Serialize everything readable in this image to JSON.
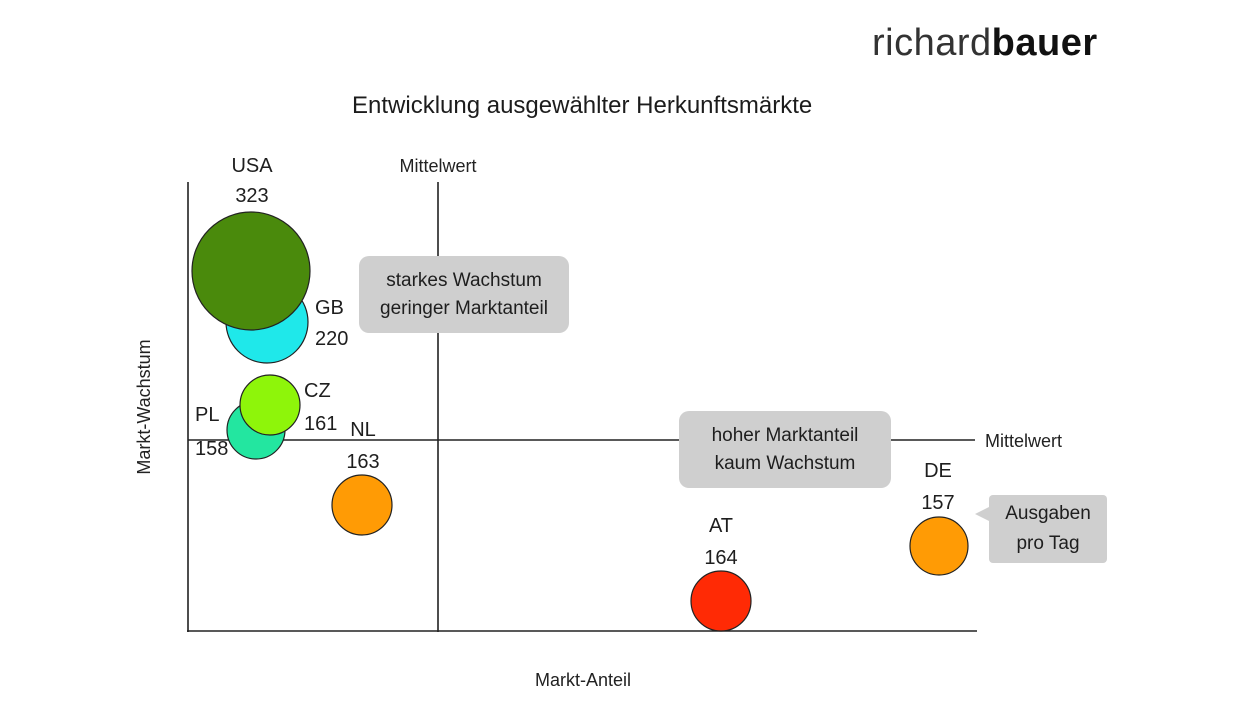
{
  "brand": {
    "light": "richard",
    "bold": "bauer"
  },
  "chart_data": {
    "type": "scatter",
    "title": "Entwicklung ausgewählter Herkunftsmärkte",
    "xlabel": "Markt-Anteil",
    "ylabel": "Markt-Wachstum",
    "mean_label_x": "Mittelwert",
    "mean_label_y": "Mittelwert",
    "bubble_size_meaning": "Ausgaben pro Tag",
    "points": [
      {
        "name": "USA",
        "value": 323,
        "color": "#4a8a0c"
      },
      {
        "name": "GB",
        "value": 220,
        "color": "#1fe8ea"
      },
      {
        "name": "CZ",
        "value": 161,
        "color": "#8ef50a"
      },
      {
        "name": "PL",
        "value": 158,
        "color": "#23e6a0"
      },
      {
        "name": "NL",
        "value": 163,
        "color": "#ff9b05"
      },
      {
        "name": "AT",
        "value": 164,
        "color": "#ff2a05"
      },
      {
        "name": "DE",
        "value": 157,
        "color": "#ff9b05"
      }
    ]
  },
  "callouts": {
    "top_left": [
      "starkes Wachstum",
      "geringer Marktanteil"
    ],
    "bottom_right": [
      "hoher Marktanteil",
      "kaum Wachstum"
    ],
    "legend": [
      "Ausgaben",
      "pro Tag"
    ]
  }
}
